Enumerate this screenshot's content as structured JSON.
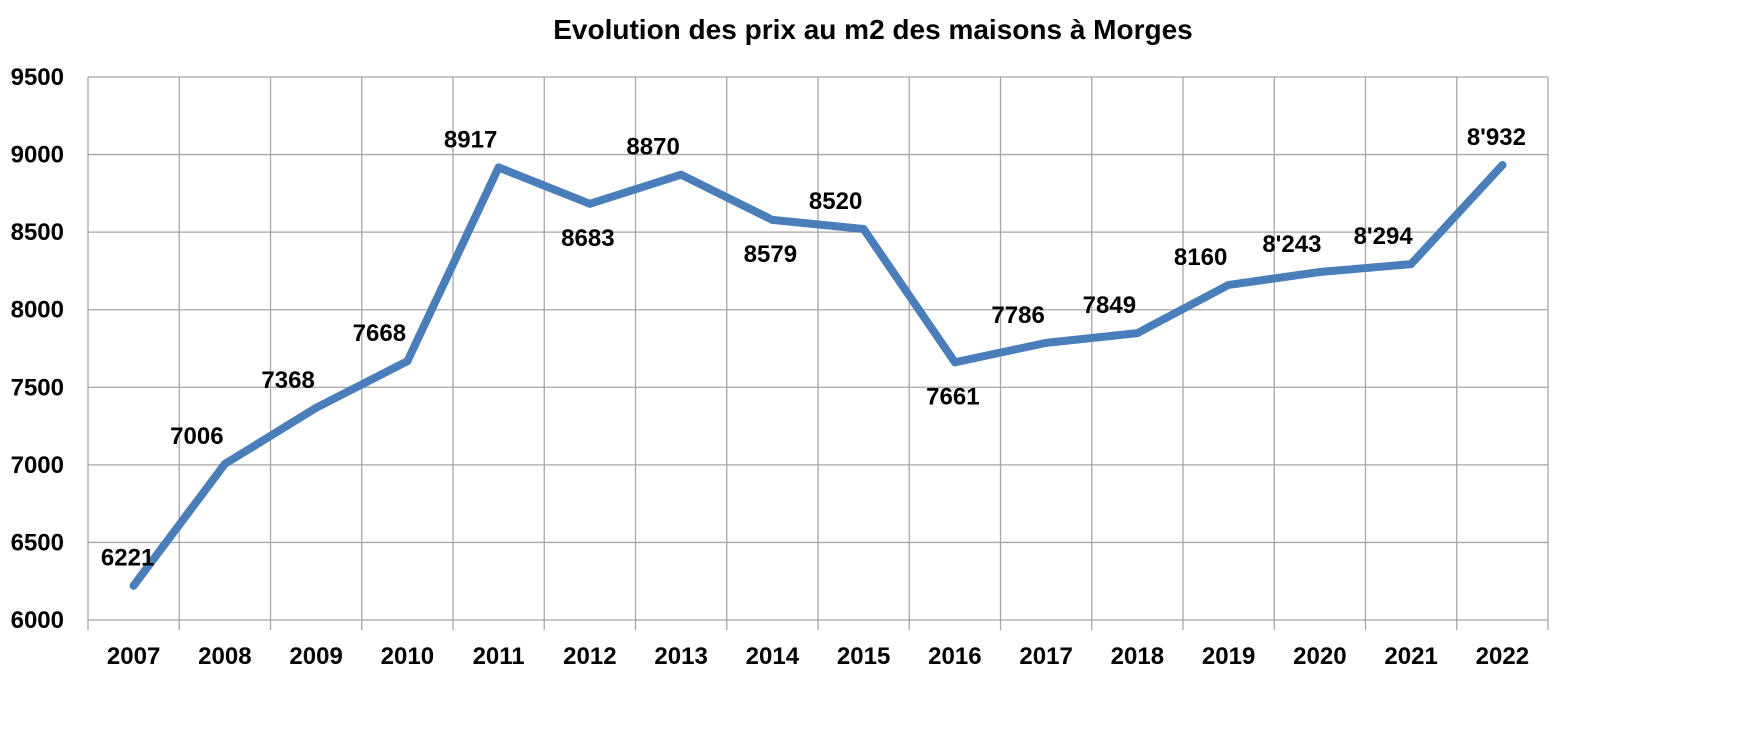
{
  "chart_data": {
    "type": "line",
    "title": "Evolution des prix au m2 des maisons à Morges",
    "xlabel": "",
    "ylabel": "",
    "categories": [
      "2007",
      "2008",
      "2009",
      "2010",
      "2011",
      "2012",
      "2013",
      "2014",
      "2015",
      "2016",
      "2017",
      "2018",
      "2019",
      "2020",
      "2021",
      "2022"
    ],
    "series": [
      {
        "values": [
          6221,
          7006,
          7368,
          7668,
          8917,
          8683,
          8870,
          8579,
          8520,
          7661,
          7786,
          7849,
          8160,
          8243,
          8294,
          8932
        ],
        "data_labels": [
          "6221",
          "7006",
          "7368",
          "7668",
          "8917",
          "8683",
          "8870",
          "8579",
          "8520",
          "7661",
          "7786",
          "7849",
          "8160",
          "8'243",
          "8'294",
          "8'932"
        ],
        "label_positions": [
          "above",
          "above",
          "above",
          "above",
          "above",
          "below",
          "above",
          "below",
          "above",
          "below",
          "above",
          "above",
          "above",
          "above",
          "above",
          "above"
        ]
      }
    ],
    "ylim": [
      6000,
      9500
    ],
    "yticks": [
      "6000",
      "6500",
      "7000",
      "7500",
      "8000",
      "8500",
      "9000",
      "9500"
    ],
    "grid": true,
    "line_color": "#4a7ebb",
    "grid_color": "#a6a6a6"
  }
}
